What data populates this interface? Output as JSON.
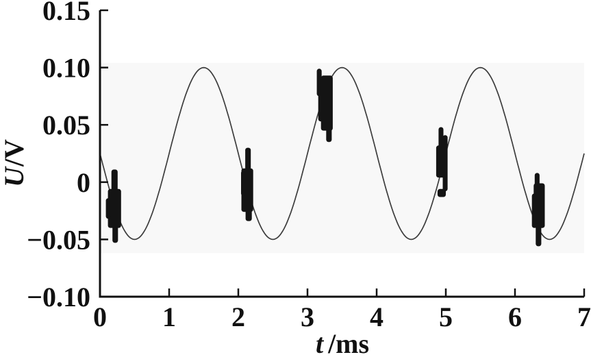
{
  "chart_data": {
    "type": "line",
    "title": "",
    "xlabel_quantity": "t",
    "xlabel_unit": "/ms",
    "ylabel_quantity": "U",
    "ylabel_unit": "/V",
    "xlim": [
      0,
      7
    ],
    "ylim": [
      -0.1,
      0.15
    ],
    "x_ticks": [
      0,
      1,
      2,
      3,
      4,
      5,
      6,
      7
    ],
    "x_tick_labels": [
      "0",
      "1",
      "2",
      "3",
      "4",
      "5",
      "6",
      "7"
    ],
    "y_ticks": [
      0.15,
      0.1,
      0.05,
      0,
      -0.05,
      -0.1
    ],
    "y_tick_labels": [
      "0.15",
      "0.10",
      "0.05",
      "0",
      "−0.05",
      "−0.10"
    ],
    "grid": false,
    "legend": null,
    "axis_style": "L-shaped axes, inward ticks, no box",
    "waveform": {
      "shape": "sine",
      "offset_V": 0.025,
      "amplitude_V": 0.075,
      "period_ms": 2.0,
      "peak_value_V": 0.1,
      "trough_value_V": -0.05,
      "peak_times_ms": [
        1.5,
        3.5,
        5.5
      ],
      "trough_times_ms": [
        0.5,
        2.5,
        4.5,
        6.5
      ]
    },
    "bursts": [
      {
        "t_center_ms": 0.22,
        "u_min_V": -0.053,
        "u_max_V": 0.011,
        "bars": [
          {
            "t": 0.21,
            "w": 0.19,
            "u1": -0.04,
            "u2": -0.006
          },
          {
            "t": 0.21,
            "w": 0.09,
            "u1": -0.01,
            "u2": 0.011
          },
          {
            "t": 0.22,
            "w": 0.08,
            "u1": -0.053,
            "u2": -0.036
          },
          {
            "t": 0.12,
            "w": 0.07,
            "u1": -0.032,
            "u2": -0.014
          }
        ]
      },
      {
        "t_center_ms": 2.13,
        "u_min_V": -0.034,
        "u_max_V": 0.03,
        "bars": [
          {
            "t": 2.13,
            "w": 0.17,
            "u1": -0.026,
            "u2": 0.012
          },
          {
            "t": 2.14,
            "w": 0.08,
            "u1": 0.005,
            "u2": 0.03
          },
          {
            "t": 2.15,
            "w": 0.09,
            "u1": -0.034,
            "u2": -0.02
          },
          {
            "t": 2.07,
            "w": 0.06,
            "u1": -0.012,
            "u2": 0.01
          }
        ]
      },
      {
        "t_center_ms": 3.26,
        "u_min_V": 0.035,
        "u_max_V": 0.099,
        "bars": [
          {
            "t": 3.28,
            "w": 0.17,
            "u1": 0.045,
            "u2": 0.093
          },
          {
            "t": 3.17,
            "w": 0.07,
            "u1": 0.075,
            "u2": 0.099
          },
          {
            "t": 3.19,
            "w": 0.07,
            "u1": 0.053,
            "u2": 0.081
          },
          {
            "t": 3.31,
            "w": 0.08,
            "u1": 0.035,
            "u2": 0.052
          }
        ]
      },
      {
        "t_center_ms": 4.95,
        "u_min_V": -0.013,
        "u_max_V": 0.048,
        "bars": [
          {
            "t": 4.94,
            "w": 0.16,
            "u1": 0.004,
            "u2": 0.032
          },
          {
            "t": 4.93,
            "w": 0.07,
            "u1": 0.03,
            "u2": 0.048
          },
          {
            "t": 4.99,
            "w": 0.07,
            "u1": -0.008,
            "u2": 0.041
          },
          {
            "t": 4.94,
            "w": 0.12,
            "u1": -0.013,
            "u2": -0.006
          }
        ]
      },
      {
        "t_center_ms": 6.34,
        "u_min_V": -0.056,
        "u_max_V": 0.008,
        "bars": [
          {
            "t": 6.35,
            "w": 0.16,
            "u1": -0.04,
            "u2": -0.001
          },
          {
            "t": 6.32,
            "w": 0.07,
            "u1": -0.012,
            "u2": 0.008
          },
          {
            "t": 6.28,
            "w": 0.07,
            "u1": -0.04,
            "u2": -0.01
          },
          {
            "t": 6.34,
            "w": 0.08,
            "u1": -0.056,
            "u2": -0.036
          }
        ]
      }
    ],
    "band_V": [
      0.104,
      -0.062
    ],
    "colors": {
      "axis": "#111111",
      "curve": "#3c3c3c",
      "burst": "#141414",
      "band": "#f8f8f8",
      "text": "#111111",
      "background": "#ffffff"
    }
  }
}
